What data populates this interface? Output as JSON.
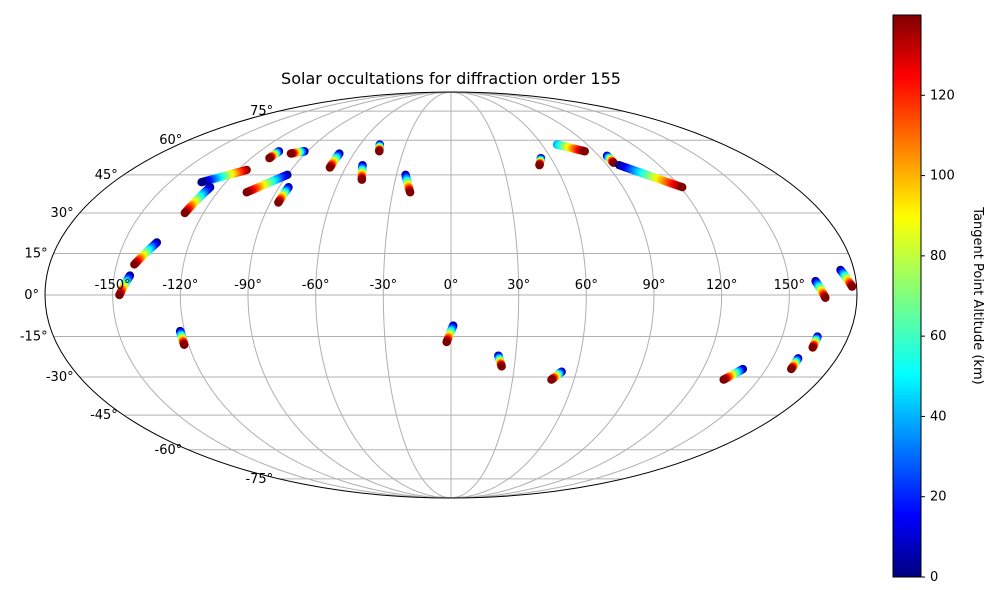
{
  "chart_data": {
    "type": "scatter",
    "title": "Solar occultations for diffraction order 155",
    "projection": "mollweide",
    "grid": true,
    "lon_tick_labels": [
      "-150°",
      "-120°",
      "-90°",
      "-60°",
      "-30°",
      "0°",
      "30°",
      "60°",
      "90°",
      "120°",
      "150°"
    ],
    "lat_tick_labels": [
      "-75°",
      "-60°",
      "-45°",
      "-30°",
      "-15°",
      "0°",
      "15°",
      "30°",
      "45°",
      "60°",
      "75°"
    ],
    "colorbar": {
      "label": "Tangent Point Altitude (km)",
      "colormap": "jet",
      "range": [
        0,
        140
      ],
      "ticks": [
        "0",
        "20",
        "40",
        "60",
        "80",
        "100",
        "120"
      ]
    },
    "tracks": [
      {
        "start": [
          -115,
          47
        ],
        "end": [
          -133,
          42
        ],
        "alt": [
          140,
          0
        ]
      },
      {
        "start": [
          -126,
          40
        ],
        "end": [
          -129,
          30
        ],
        "alt": [
          0,
          140
        ]
      },
      {
        "start": [
          -90,
          45
        ],
        "end": [
          -105,
          38
        ],
        "alt": [
          0,
          140
        ]
      },
      {
        "start": [
          -85,
          40
        ],
        "end": [
          -86,
          34
        ],
        "alt": [
          0,
          140
        ]
      },
      {
        "start": [
          -108,
          55
        ],
        "end": [
          -109,
          52
        ],
        "alt": [
          0,
          140
        ]
      },
      {
        "start": [
          -92,
          55
        ],
        "end": [
          -99,
          54
        ],
        "alt": [
          0,
          140
        ]
      },
      {
        "start": [
          -69,
          54
        ],
        "end": [
          -69,
          48
        ],
        "alt": [
          0,
          140
        ]
      },
      {
        "start": [
          -47,
          58
        ],
        "end": [
          -45,
          55
        ],
        "alt": [
          0,
          140
        ]
      },
      {
        "start": [
          -51,
          49
        ],
        "end": [
          -48,
          43
        ],
        "alt": [
          0,
          140
        ]
      },
      {
        "start": [
          -25,
          45
        ],
        "end": [
          -21,
          38
        ],
        "alt": [
          0,
          140
        ]
      },
      {
        "start": [
          -135,
          19
        ],
        "end": [
          -142,
          11
        ],
        "alt": [
          0,
          140
        ]
      },
      {
        "start": [
          -143,
          7
        ],
        "end": [
          -147,
          0
        ],
        "alt": [
          0,
          140
        ]
      },
      {
        "start": [
          -122,
          -13
        ],
        "end": [
          -122,
          -18
        ],
        "alt": [
          0,
          140
        ]
      },
      {
        "start": [
          1,
          -11
        ],
        "end": [
          -2,
          -17
        ],
        "alt": [
          0,
          140
        ]
      },
      {
        "start": [
          22,
          -22
        ],
        "end": [
          24,
          -26
        ],
        "alt": [
          0,
          140
        ]
      },
      {
        "start": [
          53,
          -28
        ],
        "end": [
          49,
          -31
        ],
        "alt": [
          0,
          140
        ]
      },
      {
        "start": [
          54,
          52
        ],
        "end": [
          51,
          49
        ],
        "alt": [
          0,
          140
        ]
      },
      {
        "start": [
          70,
          58
        ],
        "end": [
          84,
          55
        ],
        "alt": [
          40,
          140
        ]
      },
      {
        "start": [
          95,
          53
        ],
        "end": [
          95,
          50
        ],
        "alt": [
          0,
          140
        ]
      },
      {
        "start": [
          97,
          49
        ],
        "end": [
          121,
          40
        ],
        "alt": [
          0,
          140
        ]
      },
      {
        "start": [
          139,
          -27
        ],
        "end": [
          133,
          -31
        ],
        "alt": [
          0,
          140
        ]
      },
      {
        "start": [
          162,
          -23
        ],
        "end": [
          162,
          -27
        ],
        "alt": [
          0,
          140
        ]
      },
      {
        "start": [
          166,
          -15
        ],
        "end": [
          166,
          -19
        ],
        "alt": [
          0,
          140
        ]
      },
      {
        "start": [
          162,
          5
        ],
        "end": [
          166,
          -1
        ],
        "alt": [
          0,
          140
        ]
      },
      {
        "start": [
          174,
          9
        ],
        "end": [
          178,
          3
        ],
        "alt": [
          0,
          140
        ]
      }
    ]
  }
}
